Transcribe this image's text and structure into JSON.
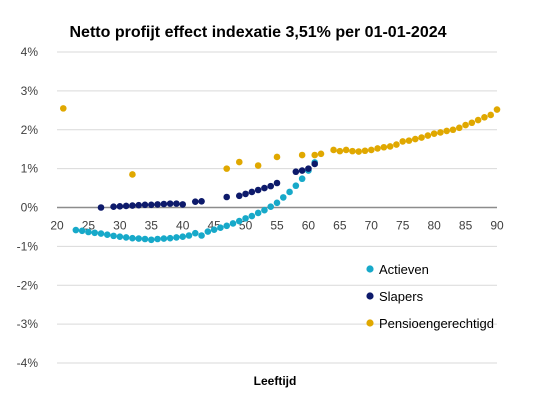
{
  "chart_data": {
    "type": "scatter",
    "title": "Netto profijt effect indexatie 3,51% per 01-01-2024",
    "xlabel": "Leeftijd",
    "ylabel": "",
    "xlim": [
      20,
      90
    ],
    "ylim": [
      -4,
      4
    ],
    "x_ticks": [
      20,
      25,
      30,
      35,
      40,
      45,
      50,
      55,
      60,
      65,
      70,
      75,
      80,
      85,
      90
    ],
    "y_ticks": [
      4,
      3,
      2,
      1,
      0,
      -1,
      -2,
      -3,
      -4
    ],
    "y_tick_labels": [
      "4%",
      "3%",
      "2%",
      "1%",
      "0%",
      "-1%",
      "-2%",
      "-3%",
      "-4%"
    ],
    "grid": "horizontal",
    "legend_position": "bottom-right",
    "series": [
      {
        "name": "Actieven",
        "color": "#17a9c9",
        "points": [
          [
            23,
            -0.58
          ],
          [
            24,
            -0.6
          ],
          [
            25,
            -0.63
          ],
          [
            26,
            -0.65
          ],
          [
            27,
            -0.67
          ],
          [
            28,
            -0.7
          ],
          [
            29,
            -0.73
          ],
          [
            30,
            -0.75
          ],
          [
            31,
            -0.77
          ],
          [
            32,
            -0.79
          ],
          [
            33,
            -0.8
          ],
          [
            34,
            -0.81
          ],
          [
            35,
            -0.83
          ],
          [
            36,
            -0.81
          ],
          [
            37,
            -0.8
          ],
          [
            38,
            -0.79
          ],
          [
            39,
            -0.77
          ],
          [
            40,
            -0.75
          ],
          [
            41,
            -0.72
          ],
          [
            42,
            -0.66
          ],
          [
            43,
            -0.72
          ],
          [
            44,
            -0.62
          ],
          [
            45,
            -0.57
          ],
          [
            46,
            -0.52
          ],
          [
            47,
            -0.47
          ],
          [
            48,
            -0.41
          ],
          [
            49,
            -0.35
          ],
          [
            50,
            -0.28
          ],
          [
            51,
            -0.22
          ],
          [
            52,
            -0.14
          ],
          [
            53,
            -0.07
          ],
          [
            54,
            0.02
          ],
          [
            55,
            0.12
          ],
          [
            56,
            0.26
          ],
          [
            57,
            0.4
          ],
          [
            58,
            0.56
          ],
          [
            59,
            0.74
          ],
          [
            60,
            0.95
          ],
          [
            61,
            1.16
          ]
        ]
      },
      {
        "name": "Slapers",
        "color": "#0d1a6b",
        "points": [
          [
            27,
            0.0
          ],
          [
            29,
            0.02
          ],
          [
            30,
            0.03
          ],
          [
            31,
            0.04
          ],
          [
            32,
            0.05
          ],
          [
            33,
            0.06
          ],
          [
            34,
            0.07
          ],
          [
            35,
            0.07
          ],
          [
            36,
            0.08
          ],
          [
            37,
            0.09
          ],
          [
            38,
            0.1
          ],
          [
            39,
            0.1
          ],
          [
            40,
            0.08
          ],
          [
            42,
            0.15
          ],
          [
            43,
            0.16
          ],
          [
            47,
            0.27
          ],
          [
            49,
            0.3
          ],
          [
            50,
            0.35
          ],
          [
            51,
            0.4
          ],
          [
            52,
            0.45
          ],
          [
            53,
            0.5
          ],
          [
            54,
            0.55
          ],
          [
            55,
            0.63
          ],
          [
            58,
            0.92
          ],
          [
            59,
            0.95
          ],
          [
            60,
            1.0
          ],
          [
            61,
            1.12
          ]
        ]
      },
      {
        "name": "Pensioengerechtigd",
        "color": "#e0a800",
        "points": [
          [
            21,
            2.55
          ],
          [
            32,
            0.85
          ],
          [
            47,
            1.0
          ],
          [
            49,
            1.17
          ],
          [
            52,
            1.08
          ],
          [
            55,
            1.3
          ],
          [
            59,
            1.35
          ],
          [
            61,
            1.35
          ],
          [
            62,
            1.38
          ],
          [
            64,
            1.48
          ],
          [
            65,
            1.45
          ],
          [
            66,
            1.48
          ],
          [
            67,
            1.45
          ],
          [
            68,
            1.44
          ],
          [
            69,
            1.46
          ],
          [
            70,
            1.48
          ],
          [
            71,
            1.52
          ],
          [
            72,
            1.55
          ],
          [
            73,
            1.57
          ],
          [
            74,
            1.62
          ],
          [
            75,
            1.7
          ],
          [
            76,
            1.72
          ],
          [
            77,
            1.76
          ],
          [
            78,
            1.8
          ],
          [
            79,
            1.85
          ],
          [
            80,
            1.9
          ],
          [
            81,
            1.93
          ],
          [
            82,
            1.97
          ],
          [
            83,
            2.0
          ],
          [
            84,
            2.05
          ],
          [
            85,
            2.12
          ],
          [
            86,
            2.18
          ],
          [
            87,
            2.25
          ],
          [
            88,
            2.32
          ],
          [
            89,
            2.38
          ],
          [
            90,
            2.52
          ]
        ]
      }
    ]
  }
}
